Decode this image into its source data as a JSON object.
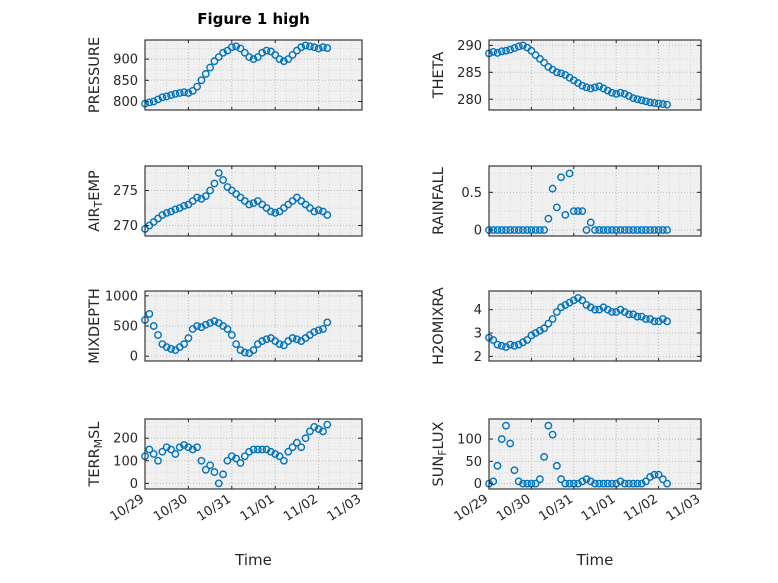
{
  "figure": {
    "title": "Figure 1 high",
    "xlabel": "Time",
    "marker_color": "#0072BD",
    "axes_face_color": "#f0f0f0",
    "axes_edge_color": "#262626"
  },
  "chart_data": {
    "type": "scatter",
    "title": "Figure 1 high",
    "xlabel": "Time",
    "xlim": [
      0,
      5
    ],
    "x_tick_labels": [
      "10/29",
      "10/30",
      "10/31",
      "11/01",
      "11/02",
      "11/03"
    ],
    "x": [
      0,
      0.1,
      0.2,
      0.3,
      0.4,
      0.5,
      0.6,
      0.7,
      0.8,
      0.9,
      1,
      1.1,
      1.2,
      1.3,
      1.4,
      1.5,
      1.6,
      1.7,
      1.8,
      1.9,
      2,
      2.1,
      2.2,
      2.3,
      2.4,
      2.5,
      2.6,
      2.7,
      2.8,
      2.9,
      3,
      3.1,
      3.2,
      3.3,
      3.4,
      3.5,
      3.6,
      3.7,
      3.8,
      3.9,
      4,
      4.1,
      4.2
    ],
    "charts": [
      {
        "name": "pressure",
        "ylabel": {
          "pre": "PRESSURE",
          "sub": "",
          "post": ""
        },
        "ylim": [
          780,
          945
        ],
        "yticks": [
          800,
          850,
          900
        ],
        "values": [
          795,
          798,
          800,
          805,
          810,
          812,
          815,
          818,
          820,
          822,
          820,
          825,
          835,
          850,
          865,
          880,
          895,
          905,
          915,
          920,
          928,
          930,
          925,
          915,
          905,
          900,
          905,
          915,
          920,
          918,
          910,
          900,
          895,
          900,
          910,
          920,
          928,
          932,
          930,
          928,
          925,
          928,
          926
        ]
      },
      {
        "name": "theta",
        "ylabel": {
          "pre": "THETA",
          "sub": "",
          "post": ""
        },
        "ylim": [
          278,
          291
        ],
        "yticks": [
          280,
          285,
          290
        ],
        "values": [
          288.5,
          288.8,
          288.6,
          288.9,
          289,
          289.2,
          289.5,
          289.8,
          290,
          289.6,
          289,
          288.2,
          287.5,
          286.8,
          286,
          285.5,
          285,
          284.8,
          284.5,
          284,
          283.5,
          283,
          282.5,
          282.2,
          282,
          282.2,
          282.4,
          282,
          281.6,
          281.2,
          281,
          281.2,
          281,
          280.6,
          280.2,
          280,
          279.8,
          279.6,
          279.4,
          279.3,
          279.2,
          279.1,
          279
        ]
      },
      {
        "name": "airtemp",
        "ylabel": {
          "pre": "AIR",
          "sub": "T",
          "post": "EMP"
        },
        "ylim": [
          268.5,
          278.5
        ],
        "yticks": [
          270,
          275
        ],
        "values": [
          269.5,
          270,
          270.5,
          271,
          271.5,
          271.8,
          272,
          272.3,
          272.5,
          272.8,
          273,
          273.5,
          274,
          273.8,
          274.2,
          275,
          276,
          277.5,
          276.5,
          275.5,
          275,
          274.5,
          274,
          273.5,
          273,
          273.2,
          273.5,
          273,
          272.5,
          272,
          271.8,
          272,
          272.5,
          273,
          273.5,
          274,
          273.5,
          273,
          272.5,
          272,
          272.2,
          272,
          271.5
        ]
      },
      {
        "name": "rainfall",
        "ylabel": {
          "pre": "RAINFALL",
          "sub": "",
          "post": ""
        },
        "ylim": [
          -0.08,
          0.85
        ],
        "yticks": [
          0,
          0.5
        ],
        "values": [
          0,
          0,
          0,
          0,
          0,
          0,
          0,
          0,
          0,
          0,
          0,
          0,
          0,
          0,
          0.15,
          0.55,
          0.3,
          0.7,
          0.2,
          0.75,
          0.25,
          0.25,
          0.25,
          0,
          0.1,
          0,
          0,
          0,
          0,
          0,
          0,
          0,
          0,
          0,
          0,
          0,
          0,
          0,
          0,
          0,
          0,
          0,
          0
        ]
      },
      {
        "name": "mixdepth",
        "ylabel": {
          "pre": "MIXDEPTH",
          "sub": "",
          "post": ""
        },
        "ylim": [
          -80,
          1080
        ],
        "yticks": [
          0,
          500,
          1000
        ],
        "values": [
          600,
          700,
          500,
          350,
          200,
          150,
          120,
          100,
          150,
          200,
          300,
          450,
          500,
          480,
          520,
          550,
          580,
          550,
          500,
          450,
          350,
          200,
          100,
          60,
          50,
          100,
          200,
          250,
          280,
          300,
          250,
          200,
          180,
          250,
          300,
          280,
          250,
          300,
          350,
          400,
          430,
          450,
          560
        ]
      },
      {
        "name": "h2omixra",
        "ylabel": {
          "pre": "H2OMIXRA",
          "sub": "",
          "post": ""
        },
        "ylim": [
          1.8,
          4.8
        ],
        "yticks": [
          2,
          3,
          4
        ],
        "values": [
          2.8,
          2.7,
          2.5,
          2.45,
          2.4,
          2.5,
          2.45,
          2.5,
          2.6,
          2.7,
          2.9,
          3,
          3.1,
          3.2,
          3.4,
          3.6,
          3.9,
          4.1,
          4.2,
          4.3,
          4.4,
          4.5,
          4.4,
          4.2,
          4.1,
          4,
          4,
          4.1,
          4,
          3.9,
          3.9,
          4,
          3.9,
          3.8,
          3.8,
          3.7,
          3.7,
          3.6,
          3.6,
          3.5,
          3.5,
          3.6,
          3.5
        ]
      },
      {
        "name": "terrmsl",
        "ylabel": {
          "pre": "TERR",
          "sub": "M",
          "post": "SL"
        },
        "ylim": [
          -25,
          285
        ],
        "yticks": [
          0,
          100,
          200
        ],
        "values": [
          120,
          150,
          130,
          100,
          140,
          160,
          150,
          130,
          160,
          170,
          160,
          150,
          160,
          100,
          60,
          80,
          50,
          0,
          40,
          100,
          120,
          110,
          90,
          120,
          140,
          150,
          150,
          150,
          150,
          140,
          130,
          120,
          100,
          140,
          160,
          180,
          160,
          200,
          230,
          250,
          240,
          230,
          260
        ]
      },
      {
        "name": "sunflux",
        "ylabel": {
          "pre": "SUN",
          "sub": "F",
          "post": "LUX"
        },
        "ylim": [
          -12,
          145
        ],
        "yticks": [
          0,
          50,
          100
        ],
        "values": [
          0,
          5,
          40,
          100,
          130,
          90,
          30,
          5,
          0,
          0,
          0,
          0,
          10,
          60,
          130,
          110,
          40,
          10,
          0,
          0,
          0,
          0,
          5,
          10,
          5,
          0,
          0,
          0,
          0,
          0,
          0,
          5,
          0,
          0,
          0,
          0,
          0,
          5,
          15,
          20,
          20,
          10,
          0
        ]
      }
    ]
  }
}
